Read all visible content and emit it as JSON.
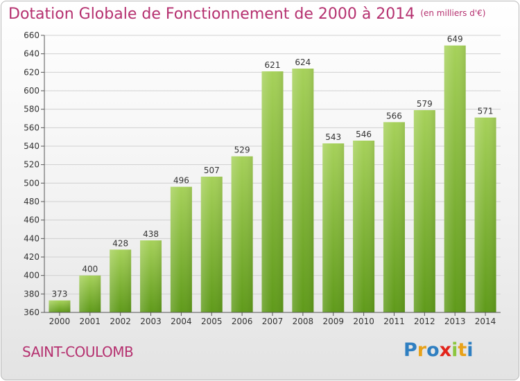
{
  "title": "Dotation Globale de Fonctionnement de 2000 à 2014",
  "subtitle": "(en milliers d'€)",
  "commune": "SAINT-COULOMB",
  "logo_text": "Proxiti",
  "colors": {
    "accent": "#b5306f",
    "bar_light": "#a6d15a",
    "bar_dark": "#5f9a1a",
    "grid": "#d0d0d0"
  },
  "chart_data": {
    "type": "bar",
    "title": "Dotation Globale de Fonctionnement de 2000 à 2014",
    "subtitle": "(en milliers d'€)",
    "xlabel": "",
    "ylabel": "",
    "categories": [
      "2000",
      "2001",
      "2002",
      "2003",
      "2004",
      "2005",
      "2006",
      "2007",
      "2008",
      "2009",
      "2010",
      "2011",
      "2012",
      "2013",
      "2014"
    ],
    "values": [
      373,
      400,
      428,
      438,
      496,
      507,
      529,
      621,
      624,
      543,
      546,
      566,
      579,
      649,
      571
    ],
    "ylim": [
      360,
      660
    ],
    "yticks": [
      360,
      380,
      400,
      420,
      440,
      460,
      480,
      500,
      520,
      540,
      560,
      580,
      600,
      620,
      640,
      660
    ],
    "grid": true,
    "data_labels": true
  }
}
